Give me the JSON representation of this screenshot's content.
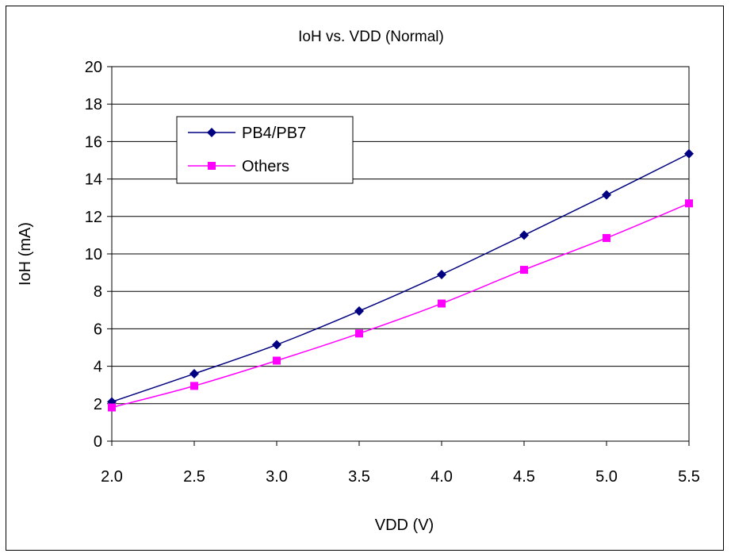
{
  "chart_data": {
    "type": "line",
    "title": "IoH vs. VDD (Normal)",
    "xlabel": "VDD (V)",
    "ylabel": "IoH (mA)",
    "x": [
      2.0,
      2.5,
      3.0,
      3.5,
      4.0,
      4.5,
      5.0,
      5.5
    ],
    "x_tick_labels": [
      "2.0",
      "2.5",
      "3.0",
      "3.5",
      "4.0",
      "4.5",
      "5.0",
      "5.5"
    ],
    "y_tick_labels": [
      "0",
      "2",
      "4",
      "6",
      "8",
      "10",
      "12",
      "14",
      "16",
      "18",
      "20"
    ],
    "xlim": [
      2.0,
      5.5
    ],
    "ylim": [
      0,
      20
    ],
    "grid": "horizontal",
    "legend_position": "upper-left",
    "series": [
      {
        "name": "PB4/PB7",
        "marker": "diamond",
        "color": "#000080",
        "values": [
          2.1,
          3.6,
          5.15,
          6.95,
          8.9,
          11.0,
          13.15,
          15.35
        ]
      },
      {
        "name": "Others",
        "marker": "square",
        "color": "#ff00ff",
        "values": [
          1.8,
          2.95,
          4.3,
          5.75,
          7.35,
          9.15,
          10.85,
          12.7
        ]
      }
    ]
  }
}
